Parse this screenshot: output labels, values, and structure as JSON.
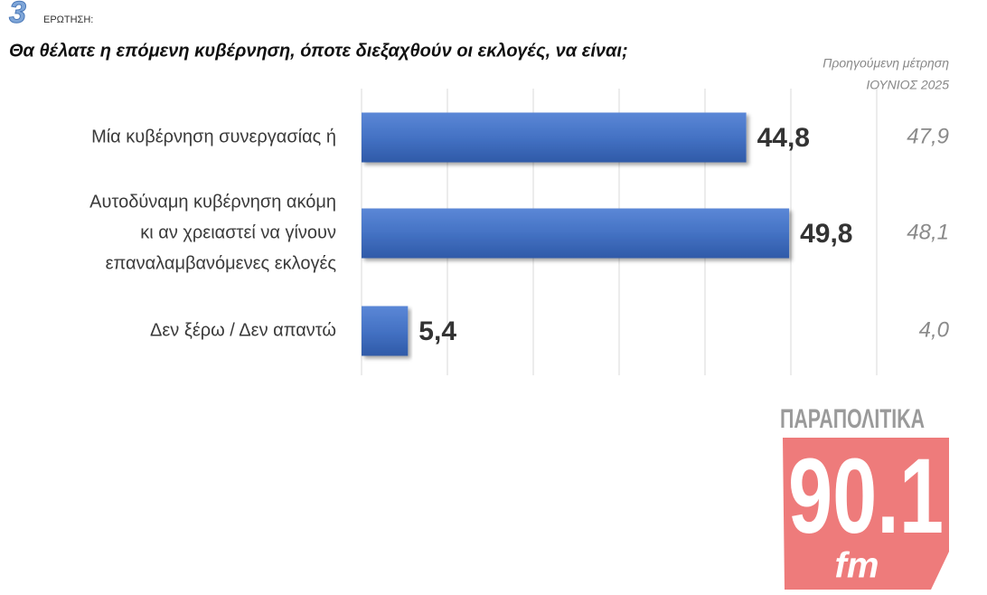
{
  "chart_data": {
    "type": "bar",
    "question_number": "3",
    "question_label": "ΕΡΩΤΗΣΗ:",
    "title": "Θα θέλατε η επόμενη κυβέρνηση, όποτε διεξαχθούν οι εκλογές, να είναι;",
    "categories": [
      [
        "Μία κυβέρνηση συνεργασίας ή"
      ],
      [
        "Αυτοδύναμη κυβέρνηση ακόμη",
        "κι αν χρειαστεί να γίνουν",
        "επαναλαμβανόμενες εκλογές"
      ],
      [
        "Δεν ξέρω / Δεν απαντώ"
      ]
    ],
    "values": [
      44.8,
      49.8,
      5.4
    ],
    "value_labels": [
      "44,8",
      "49,8",
      "5,4"
    ],
    "color": "#4472c4",
    "xlim": [
      0,
      60
    ],
    "xticks": [
      0,
      10,
      20,
      30,
      40,
      50,
      60
    ],
    "grid": true,
    "comparison": {
      "title": [
        "Προηγούμενη μέτρηση",
        "ΙΟΥΝΙΟΣ 2025"
      ],
      "values": [
        47.9,
        48.1,
        4.0
      ],
      "value_labels": [
        "47,9",
        "48,1",
        "4,0"
      ]
    }
  },
  "logo": {
    "top": "ΠΑΡΑΠΟΛΙΤΙΚΑ",
    "main": "90.1",
    "sub": "fm"
  }
}
